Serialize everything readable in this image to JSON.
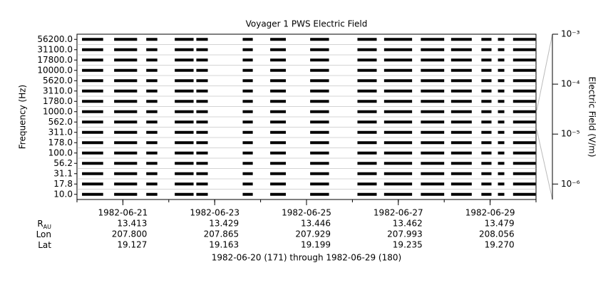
{
  "chart_data": {
    "type": "spectrogram",
    "title": "Voyager 1 PWS Electric Field",
    "ylabel": "Frequency (Hz)",
    "categories": [
      "56200.0",
      "31100.0",
      "17800.0",
      "10000.0",
      "5620.0",
      "3110.0",
      "1780.0",
      "1000.0",
      "562.0",
      "311.0",
      "178.0",
      "100.0",
      "56.2",
      "31.1",
      "17.8",
      "10.0"
    ],
    "color": "#000000",
    "xlim": [
      "1982-06-20",
      "1982-06-30"
    ],
    "xticks": [
      "1982-06-21",
      "1982-06-23",
      "1982-06-25",
      "1982-06-27",
      "1982-06-29"
    ],
    "coverage": [
      [
        "1982-06-20T02:38",
        "1982-06-20T13:41"
      ],
      [
        "1982-06-20T19:26",
        "1982-06-21T07:26"
      ],
      [
        "1982-06-21T12:14",
        "1982-06-21T18:00"
      ],
      [
        "1982-06-22T03:07",
        "1982-06-22T12:58"
      ],
      [
        "1982-06-22T14:24",
        "1982-06-22T20:24"
      ],
      [
        "1982-06-23T14:38",
        "1982-06-23T19:55"
      ],
      [
        "1982-06-24T05:02",
        "1982-06-24T13:12"
      ],
      [
        "1982-06-25T01:55",
        "1982-06-25T11:46"
      ],
      [
        "1982-06-26T02:38",
        "1982-06-26T12:43"
      ],
      [
        "1982-06-26T16:34",
        "1982-06-27T07:12"
      ],
      [
        "1982-06-27T11:46",
        "1982-06-28T00:00"
      ],
      [
        "1982-06-28T03:36",
        "1982-06-28T14:24"
      ],
      [
        "1982-06-28T19:26",
        "1982-06-29T00:43"
      ],
      [
        "1982-06-29T04:05",
        "1982-06-29T07:26"
      ],
      [
        "1982-06-29T12:00",
        "1982-06-29T23:46"
      ]
    ],
    "colorbar": {
      "label": "Electric Field (V/m)",
      "log": true,
      "zlim": [
        4.9e-07,
        0.001
      ],
      "zticks": [
        {
          "value": 0.001,
          "label": "10⁻³"
        },
        {
          "value": 0.0001,
          "label": "10⁻⁴"
        },
        {
          "value": 1e-05,
          "label": "10⁻⁵"
        },
        {
          "value": 1e-06,
          "label": "10⁻⁶"
        }
      ]
    },
    "ephemeris": [
      {
        "label": "R",
        "sub": "AU",
        "values": [
          "13.413",
          "13.429",
          "13.446",
          "13.462",
          "13.479"
        ]
      },
      {
        "label": "Lon",
        "values": [
          "207.800",
          "207.865",
          "207.929",
          "207.993",
          "208.056"
        ]
      },
      {
        "label": "Lat",
        "values": [
          "19.127",
          "19.163",
          "19.199",
          "19.235",
          "19.270"
        ]
      }
    ],
    "footer": "1982-06-20 (171) through 1982-06-29 (180)"
  }
}
